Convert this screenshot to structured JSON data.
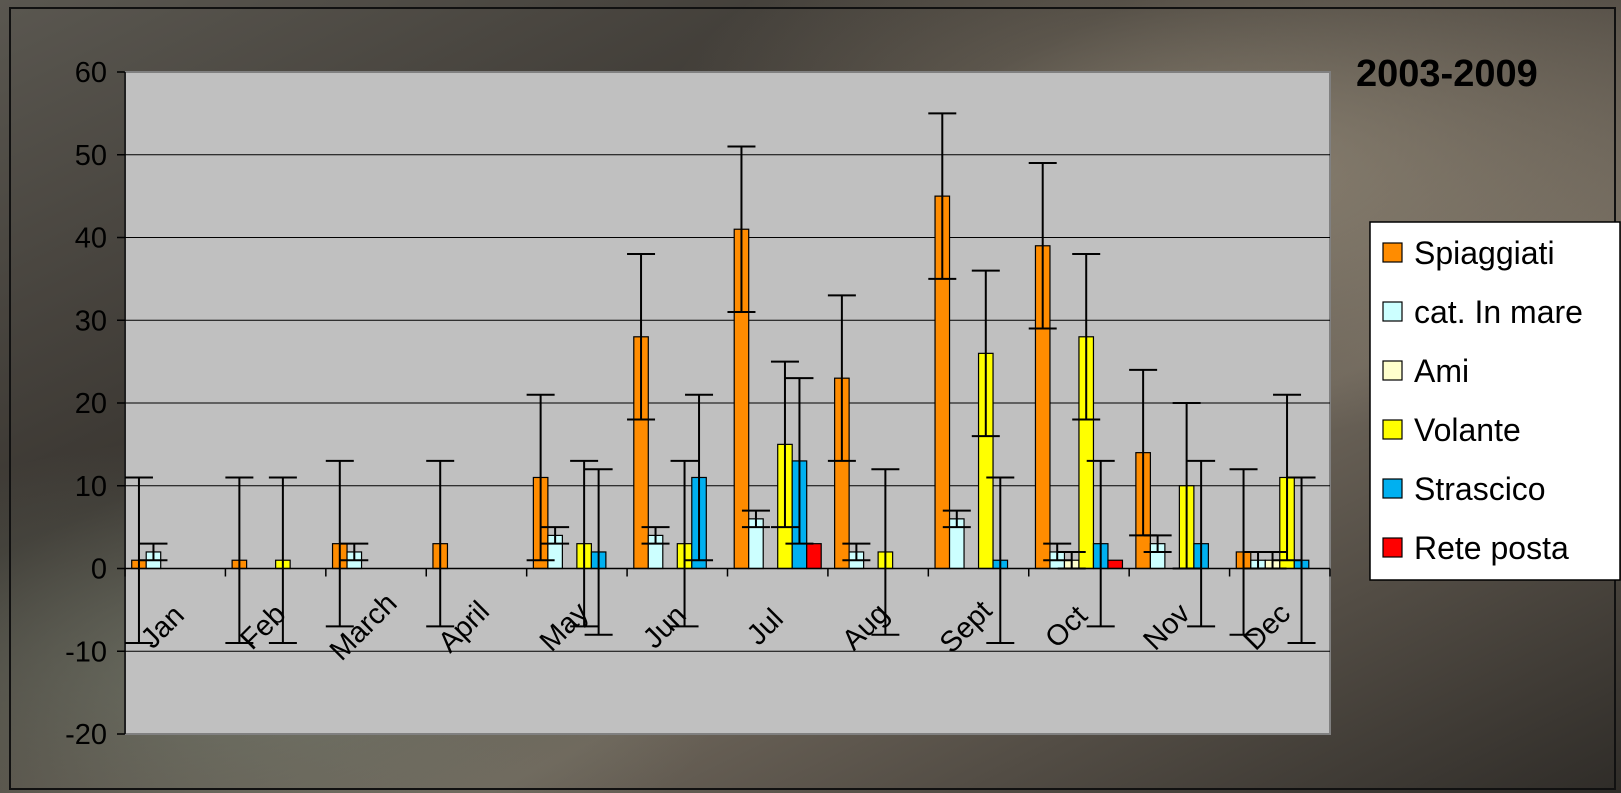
{
  "chart_data": {
    "type": "bar",
    "title": "2003-2009",
    "xlabel": "",
    "ylabel": "",
    "ylim": [
      -20,
      60
    ],
    "yticks": [
      60,
      50,
      40,
      30,
      20,
      10,
      0,
      -10,
      -20
    ],
    "grid": true,
    "legend_position": "right",
    "categories": [
      "Jan",
      "Feb",
      "March",
      "April",
      "May",
      "Jun",
      "Jul",
      "Aug",
      "Sept",
      "Oct",
      "Nov",
      "Dec"
    ],
    "series": [
      {
        "name": "Spiaggiati",
        "color": "#FF8C00",
        "values": [
          1,
          1,
          3,
          3,
          11,
          28,
          41,
          23,
          45,
          39,
          14,
          2
        ],
        "error": [
          10,
          10,
          10,
          10,
          10,
          10,
          10,
          10,
          10,
          10,
          10,
          10
        ]
      },
      {
        "name": "cat. In mare",
        "color": "#CCFFFF",
        "values": [
          2,
          null,
          2,
          null,
          4,
          4,
          6,
          2,
          6,
          2,
          3,
          1
        ],
        "error": [
          1,
          null,
          1,
          null,
          1,
          1,
          1,
          1,
          1,
          1,
          1,
          1
        ]
      },
      {
        "name": "Ami",
        "color": "#FFFFCC",
        "values": [
          null,
          null,
          null,
          null,
          null,
          null,
          null,
          null,
          null,
          1,
          null,
          1
        ],
        "error": [
          null,
          null,
          null,
          null,
          null,
          null,
          null,
          null,
          null,
          1,
          null,
          1
        ]
      },
      {
        "name": "Volante",
        "color": "#FFFF00",
        "values": [
          null,
          1,
          null,
          null,
          3,
          3,
          15,
          2,
          26,
          28,
          10,
          11
        ],
        "error": [
          null,
          10,
          null,
          null,
          10,
          10,
          10,
          10,
          10,
          10,
          10,
          10
        ]
      },
      {
        "name": "Strascico",
        "color": "#00B0F0",
        "values": [
          null,
          null,
          null,
          null,
          2,
          11,
          13,
          null,
          1,
          3,
          3,
          1
        ],
        "error": [
          null,
          null,
          null,
          null,
          10,
          10,
          10,
          null,
          10,
          10,
          10,
          10
        ]
      },
      {
        "name": "Rete posta",
        "color": "#FF0000",
        "values": [
          null,
          null,
          null,
          null,
          null,
          null,
          3,
          null,
          null,
          1,
          null,
          null
        ],
        "error": [
          null,
          null,
          null,
          null,
          null,
          null,
          null,
          null,
          null,
          null,
          null,
          null
        ]
      }
    ]
  }
}
